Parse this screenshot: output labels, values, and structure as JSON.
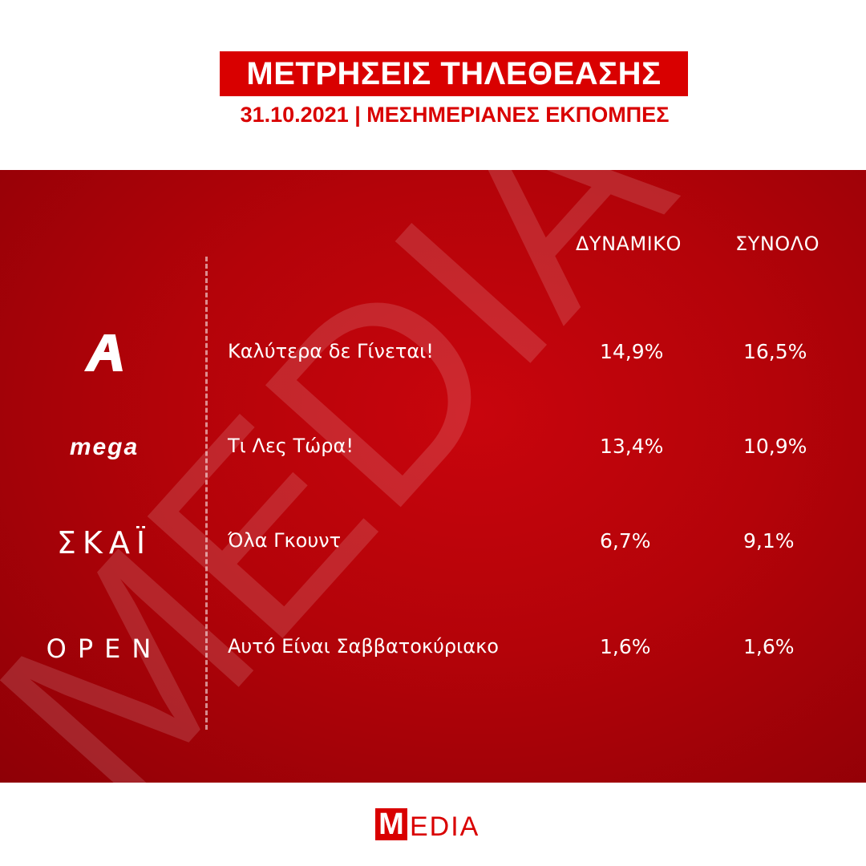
{
  "header": {
    "title": "ΜΕΤΡΗΣΕΙΣ ΤΗΛΕΘΕΑΣΗΣ",
    "subtitle": "31.10.2021 | ΜΕΣΗΜΕΡΙΑΝΕΣ ΕΚΠΟΜΠΕΣ"
  },
  "table": {
    "columns": [
      "ΔΥΝΑΜΙΚΟ",
      "ΣΥΝΟΛΟ"
    ],
    "rows": [
      {
        "channel": "alpha-logo",
        "show": "Καλύτερα δε Γίνεται!",
        "dynamic": "14,9%",
        "total": "16,5%"
      },
      {
        "channel": "mega-logo",
        "logo_text": "mega",
        "show": "Τι Λες Τώρα!",
        "dynamic": "13,4%",
        "total": "10,9%"
      },
      {
        "channel": "skai-logo",
        "logo_text": "ΣΚΑΪ",
        "show": "Όλα Γκουντ",
        "dynamic": "6,7%",
        "total": "9,1%"
      },
      {
        "channel": "open-logo",
        "logo_text": "OPEN",
        "show": "Αυτό Είναι Σαββατοκύριακο",
        "dynamic": "1,6%",
        "total": "1,6%"
      }
    ]
  },
  "watermark": {
    "text": "MEDIA"
  },
  "footer": {
    "logo_initial": "M",
    "logo_rest": "EDIA"
  },
  "colors": {
    "brand_red": "#d90000",
    "panel_red": "#b40309",
    "text_white": "#ffffff"
  }
}
